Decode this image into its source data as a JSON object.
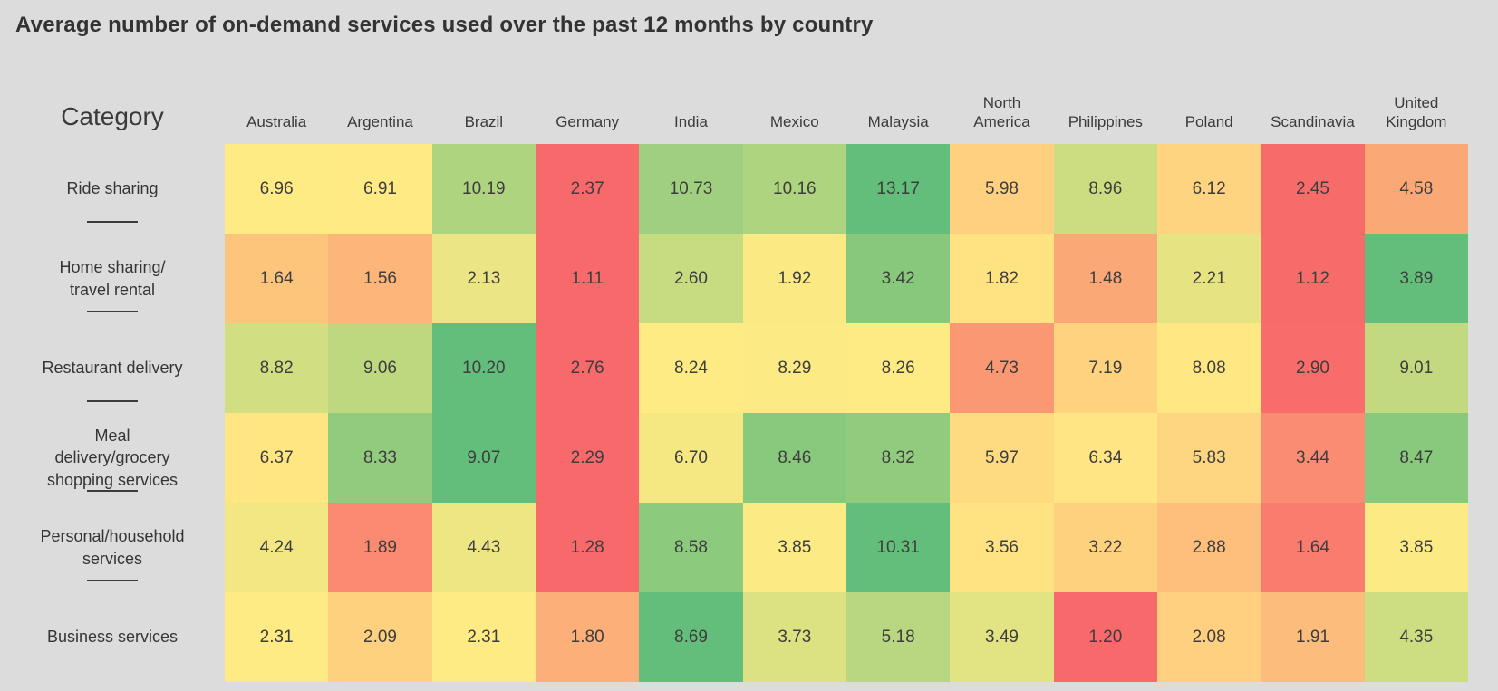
{
  "title": "Average number of on-demand services used over the past 12 months by country",
  "corner_label": "Category",
  "colors": {
    "background": "#dcdcdc",
    "title_text": "#333333",
    "cell_text": "#3d3d3d"
  },
  "chart_data": {
    "type": "heatmap",
    "title": "Average number of on-demand services used over the past 12 months by country",
    "row_axis_label": "Category",
    "columns": [
      "Australia",
      "Argentina",
      "Brazil",
      "Germany",
      "India",
      "Mexico",
      "Malaysia",
      "North America",
      "Philippines",
      "Poland",
      "Scandinavia",
      "United Kingdom"
    ],
    "rows": [
      {
        "label": "Ride sharing",
        "label_lines": [
          "Ride sharing"
        ],
        "values": [
          6.96,
          6.91,
          10.19,
          2.37,
          10.73,
          10.16,
          13.17,
          5.98,
          8.96,
          6.12,
          2.45,
          4.58
        ]
      },
      {
        "label": "Home sharing/travel rental",
        "label_lines": [
          "Home sharing/",
          "travel rental"
        ],
        "values": [
          1.64,
          1.56,
          2.13,
          1.11,
          2.6,
          1.92,
          3.42,
          1.82,
          1.48,
          2.21,
          1.12,
          3.89
        ]
      },
      {
        "label": "Restaurant delivery",
        "label_lines": [
          "Restaurant delivery"
        ],
        "values": [
          8.82,
          9.06,
          10.2,
          2.76,
          8.24,
          8.29,
          8.26,
          4.73,
          7.19,
          8.08,
          2.9,
          9.01
        ]
      },
      {
        "label": "Meal delivery/grocery shopping services",
        "label_lines": [
          "Meal",
          "delivery/grocery",
          "shopping services"
        ],
        "values": [
          6.37,
          8.33,
          9.07,
          2.29,
          6.7,
          8.46,
          8.32,
          5.97,
          6.34,
          5.83,
          3.44,
          8.47
        ]
      },
      {
        "label": "Personal/household services",
        "label_lines": [
          "Personal/household",
          "services"
        ],
        "values": [
          4.24,
          1.89,
          4.43,
          1.28,
          8.58,
          3.85,
          10.31,
          3.56,
          3.22,
          2.88,
          1.64,
          3.85
        ]
      },
      {
        "label": "Business services",
        "label_lines": [
          "Business services"
        ],
        "values": [
          2.31,
          2.09,
          2.31,
          1.8,
          8.69,
          3.73,
          5.18,
          3.49,
          1.2,
          2.08,
          1.91,
          4.35
        ]
      }
    ],
    "value_format": "2-decimals",
    "color_scale": {
      "type": "3-color",
      "min_color": "#F8696B",
      "mid_color": "#FFEB84",
      "max_color": "#63BE7B",
      "normalization": "per-row",
      "midpoint": "row-median",
      "legend": "off"
    }
  }
}
